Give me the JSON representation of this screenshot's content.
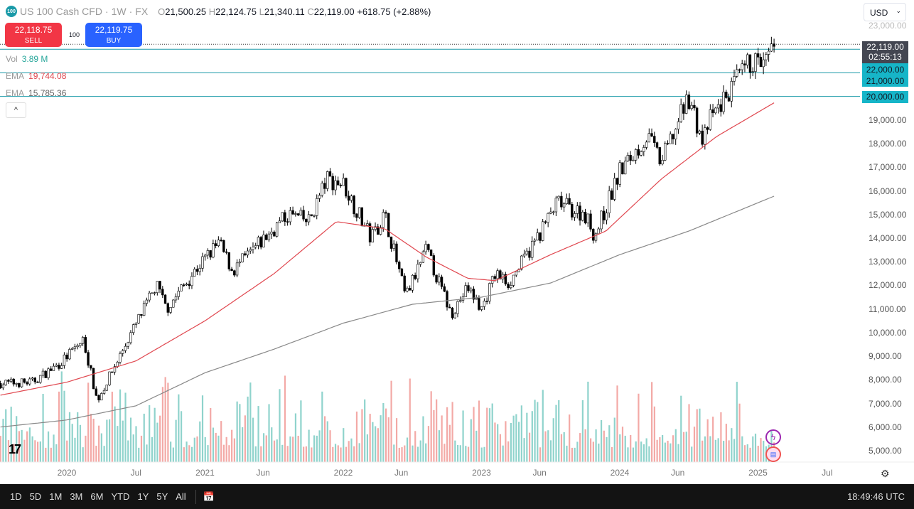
{
  "header": {
    "logo_text": "100",
    "symbol": "US 100 Cash CFD",
    "interval": "1W",
    "exchange": "FX",
    "open_key": "O",
    "open": "21,500.25",
    "high_key": "H",
    "high": "22,124.75",
    "low_key": "L",
    "low": "21,340.11",
    "close_key": "C",
    "close": "22,119.00",
    "change": "+618.75 (+2.88%)"
  },
  "trade": {
    "sell_price": "22,118.75",
    "sell_label": "SELL",
    "qty": "100",
    "buy_price": "22,119.75",
    "buy_label": "BUY"
  },
  "legend": {
    "vol_label": "Vol",
    "vol_value": "3.89 M",
    "ema1_label": "EMA",
    "ema1_value": "19,744.08",
    "ema2_label": "EMA",
    "ema2_value": "15,785.36",
    "collapse_icon": "^"
  },
  "currency": "USD",
  "price_labels": {
    "current": "22,119.00",
    "countdown": "02:55:13",
    "l1": "22,000.00",
    "l2": "21,000.00",
    "l3": "20,000.00"
  },
  "bottom": {
    "ranges": [
      "1D",
      "5D",
      "1M",
      "3M",
      "6M",
      "YTD",
      "1Y",
      "5Y",
      "All"
    ],
    "time": "18:49:46 UTC"
  },
  "colors": {
    "up": "#26a69a",
    "down": "#ef5350",
    "line": "#1a9aa8",
    "ema50": "#e0474f",
    "ema200": "#888888"
  },
  "chart_data": {
    "type": "candlestick",
    "y_ticks": [
      "23,000.00",
      "19,000.00",
      "18,000.00",
      "17,000.00",
      "16,000.00",
      "15,000.00",
      "14,000.00",
      "13,000.00",
      "12,000.00",
      "11,000.00",
      "10,000.00",
      "9,000.00",
      "8,000.00",
      "7,000.00",
      "6,000.00",
      "5,000.00"
    ],
    "y_tick_values": [
      23000,
      19000,
      18000,
      17000,
      16000,
      15000,
      14000,
      13000,
      12000,
      11000,
      10000,
      9000,
      8000,
      7000,
      6000,
      5000
    ],
    "x_ticks": [
      "2020",
      "Jul",
      "2021",
      "Jun",
      "2022",
      "Jun",
      "2023",
      "Jun",
      "2024",
      "Jun",
      "2025",
      "Jul"
    ],
    "x_tick_values": [
      2020.0,
      2020.5,
      2021.0,
      2021.42,
      2022.0,
      2022.42,
      2023.0,
      2023.42,
      2024.0,
      2024.42,
      2025.0,
      2025.5
    ],
    "xlim": [
      2019.52,
      2025.75
    ],
    "ylim": [
      4500,
      23900
    ],
    "price_path": [
      [
        2019.52,
        7850
      ],
      [
        2019.75,
        7900
      ],
      [
        2019.95,
        8700
      ],
      [
        2020.12,
        9700
      ],
      [
        2020.22,
        7100
      ],
      [
        2020.45,
        9800
      ],
      [
        2020.65,
        12000
      ],
      [
        2020.72,
        11000
      ],
      [
        2020.95,
        12800
      ],
      [
        2021.1,
        13800
      ],
      [
        2021.2,
        12600
      ],
      [
        2021.4,
        13800
      ],
      [
        2021.6,
        15000
      ],
      [
        2021.75,
        14700
      ],
      [
        2021.88,
        16500
      ],
      [
        2022.0,
        16300
      ],
      [
        2022.2,
        14000
      ],
      [
        2022.3,
        15000
      ],
      [
        2022.45,
        11500
      ],
      [
        2022.6,
        13500
      ],
      [
        2022.78,
        10800
      ],
      [
        2022.9,
        11900
      ],
      [
        2023.0,
        11000
      ],
      [
        2023.1,
        12500
      ],
      [
        2023.2,
        12100
      ],
      [
        2023.35,
        13500
      ],
      [
        2023.55,
        15500
      ],
      [
        2023.75,
        15000
      ],
      [
        2023.82,
        14100
      ],
      [
        2024.0,
        16800
      ],
      [
        2024.2,
        18300
      ],
      [
        2024.3,
        17200
      ],
      [
        2024.5,
        20000
      ],
      [
        2024.6,
        18000
      ],
      [
        2024.65,
        19000
      ],
      [
        2024.95,
        21500
      ],
      [
        2025.05,
        21300
      ],
      [
        2025.12,
        22119
      ]
    ],
    "ema50": [
      [
        2019.52,
        7350
      ],
      [
        2020.0,
        7900
      ],
      [
        2020.5,
        8800
      ],
      [
        2021.0,
        10500
      ],
      [
        2021.5,
        12500
      ],
      [
        2021.95,
        14700
      ],
      [
        2022.3,
        14400
      ],
      [
        2022.6,
        13200
      ],
      [
        2022.9,
        12300
      ],
      [
        2023.1,
        12200
      ],
      [
        2023.5,
        13300
      ],
      [
        2023.9,
        14300
      ],
      [
        2024.3,
        16500
      ],
      [
        2024.7,
        18300
      ],
      [
        2025.12,
        19744
      ]
    ],
    "ema200": [
      [
        2019.52,
        6000
      ],
      [
        2020.0,
        6300
      ],
      [
        2020.5,
        6900
      ],
      [
        2021.0,
        8300
      ],
      [
        2021.5,
        9300
      ],
      [
        2022.0,
        10400
      ],
      [
        2022.5,
        11200
      ],
      [
        2023.0,
        11500
      ],
      [
        2023.5,
        12100
      ],
      [
        2024.0,
        13300
      ],
      [
        2024.5,
        14300
      ],
      [
        2025.12,
        15785
      ]
    ],
    "hlines": [
      22000,
      21000,
      20000
    ],
    "current_price": 22119
  }
}
